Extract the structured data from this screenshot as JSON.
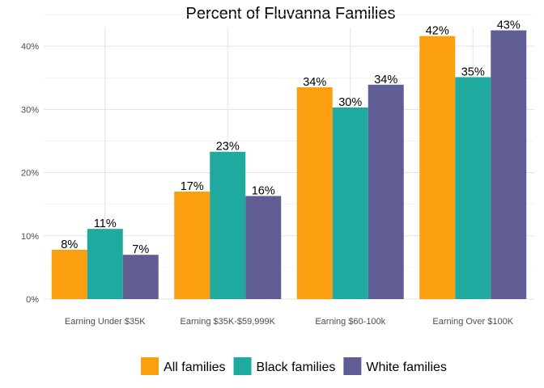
{
  "chart_data": {
    "type": "bar",
    "title": "Percent of Fluvanna Families",
    "xlabel": "",
    "ylabel": "",
    "categories": [
      "Earning Under $35K",
      "Earning $35K-$59,999K",
      "Earning $60-100k",
      "Earning Over $100K"
    ],
    "series": [
      {
        "name": "All families",
        "color": "#FB9E10",
        "values": [
          7.8,
          17.0,
          33.5,
          41.6
        ],
        "labels": [
          "8%",
          "17%",
          "34%",
          "42%"
        ]
      },
      {
        "name": "Black families",
        "color": "#20A99E",
        "values": [
          11.1,
          23.3,
          30.3,
          35.1
        ],
        "labels": [
          "11%",
          "23%",
          "30%",
          "35%"
        ]
      },
      {
        "name": "White families",
        "color": "#5F5D94",
        "values": [
          7.0,
          16.3,
          33.9,
          42.5
        ],
        "labels": [
          "7%",
          "16%",
          "34%",
          "43%"
        ]
      }
    ],
    "ylim": [
      0,
      45
    ],
    "yticks": [
      0,
      10,
      20,
      30,
      40
    ],
    "ytick_labels": [
      "0%",
      "10%",
      "20%",
      "30%",
      "40%"
    ],
    "grid": true,
    "legend_position": "bottom"
  }
}
